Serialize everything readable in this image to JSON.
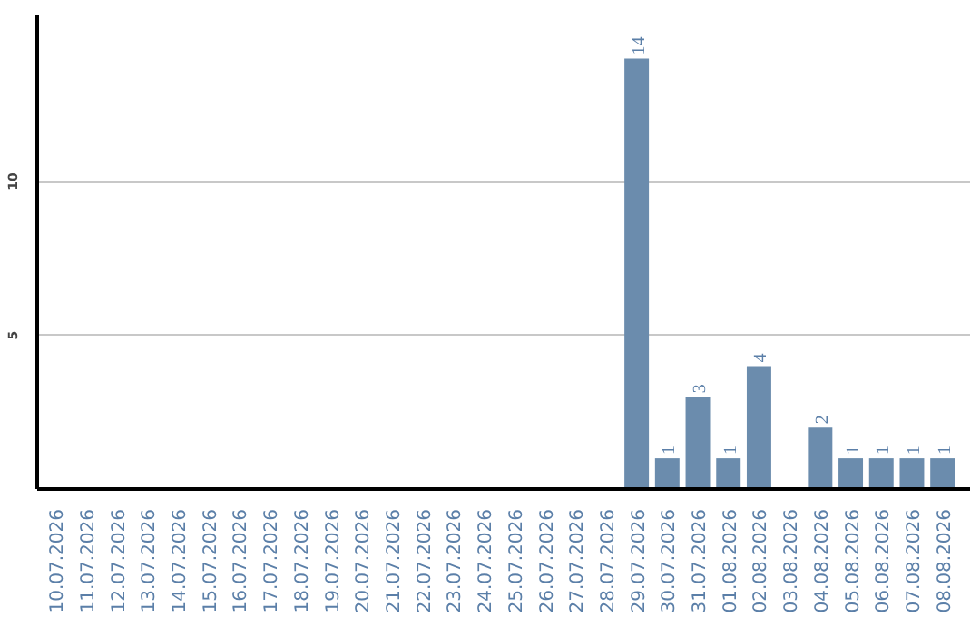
{
  "chart_data": {
    "type": "bar",
    "categories": [
      "10.07.2026",
      "11.07.2026",
      "12.07.2026",
      "13.07.2026",
      "14.07.2026",
      "15.07.2026",
      "16.07.2026",
      "17.07.2026",
      "18.07.2026",
      "19.07.2026",
      "20.07.2026",
      "21.07.2026",
      "22.07.2026",
      "23.07.2026",
      "24.07.2026",
      "25.07.2026",
      "26.07.2026",
      "27.07.2026",
      "28.07.2026",
      "29.07.2026",
      "30.07.2026",
      "31.07.2026",
      "01.08.2026",
      "02.08.2026",
      "03.08.2026",
      "04.08.2026",
      "05.08.2026",
      "06.08.2026",
      "07.08.2026",
      "08.08.2026"
    ],
    "values": [
      0,
      0,
      0,
      0,
      0,
      0,
      0,
      0,
      0,
      0,
      0,
      0,
      0,
      0,
      0,
      0,
      0,
      0,
      0,
      14,
      1,
      3,
      1,
      4,
      0,
      2,
      1,
      1,
      1,
      1
    ],
    "value_labels": [
      null,
      null,
      null,
      null,
      null,
      null,
      null,
      null,
      null,
      null,
      null,
      null,
      null,
      null,
      null,
      null,
      null,
      null,
      null,
      "14",
      "1",
      "3",
      "1",
      "4",
      null,
      "2",
      "1",
      "1",
      "1",
      "1"
    ],
    "color": "#6b8cad",
    "ylim": [
      0,
      15.4
    ],
    "yticks": [
      5,
      10
    ],
    "grid": "y"
  }
}
